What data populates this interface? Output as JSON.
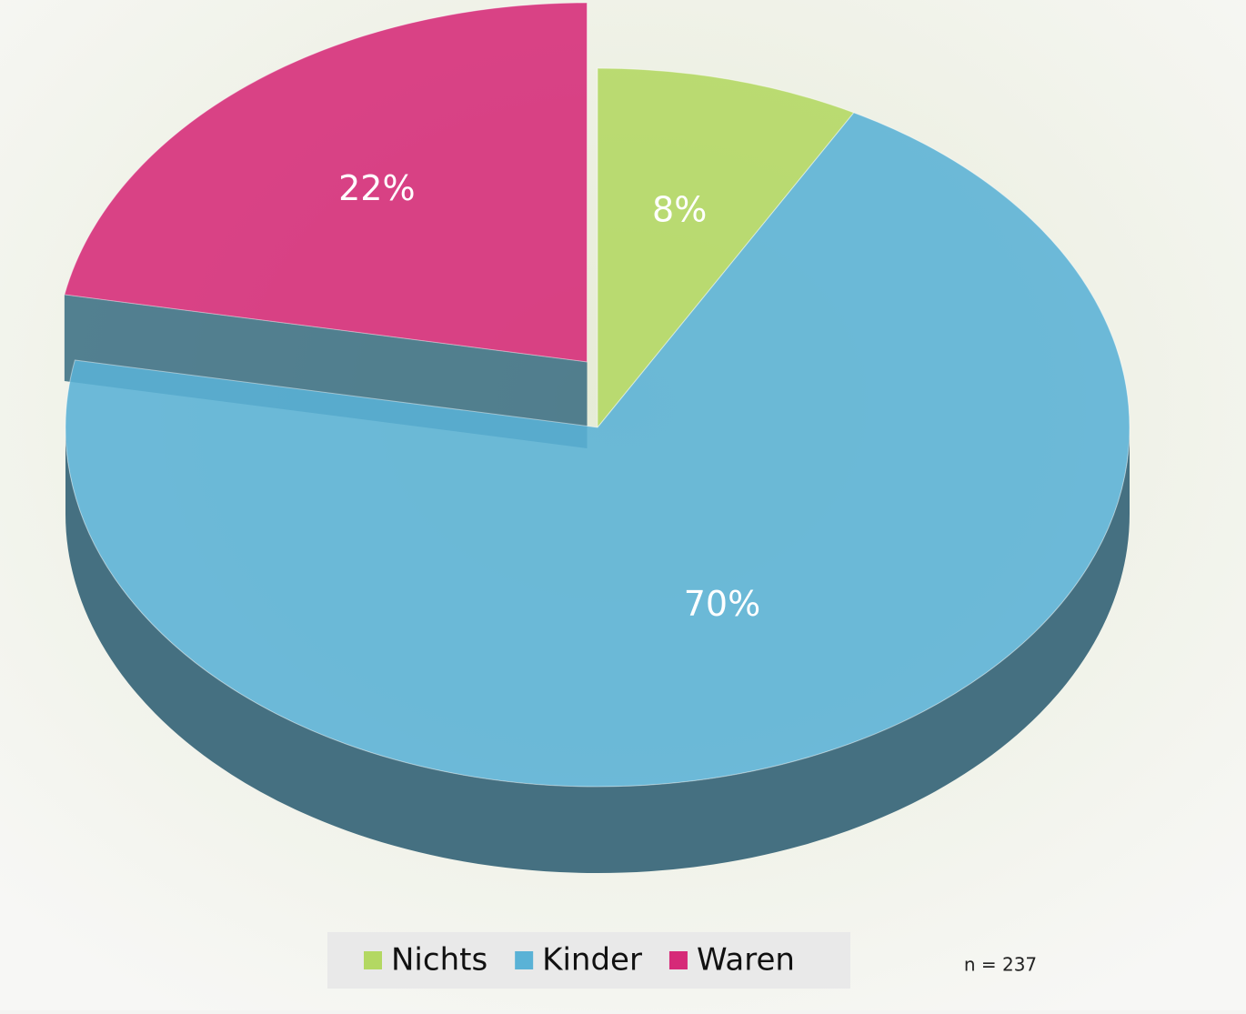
{
  "chart_data": {
    "type": "pie",
    "categories": [
      "Nichts",
      "Kinder",
      "Waren"
    ],
    "values": [
      8,
      70,
      22
    ],
    "value_labels": [
      "8%",
      "70%",
      "22%"
    ],
    "colors": [
      "#b3d862",
      "#5ab2d6",
      "#d62a78"
    ],
    "legend": "bottom",
    "annotation": "n = 237"
  }
}
